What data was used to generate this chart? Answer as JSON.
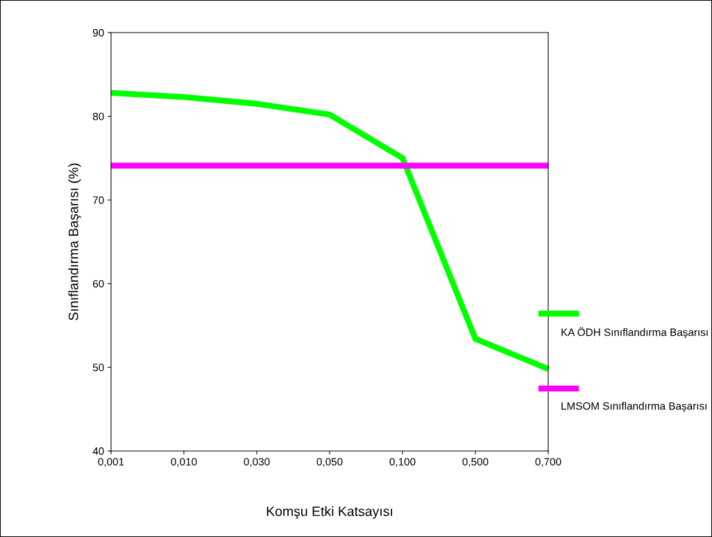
{
  "chart_data": {
    "type": "line",
    "xlabel": "Komşu Etki Katsayısı",
    "ylabel": "Sınıflandırma Başarısı (%)",
    "categories": [
      "0,001",
      "0,010",
      "0,030",
      "0,050",
      "0,100",
      "0,500",
      "0,700"
    ],
    "series": [
      {
        "name": "KA ÖDH Sınıflandırma Başarısı",
        "color": "#00ff00",
        "values": [
          82.8,
          82.3,
          81.5,
          80.2,
          75.0,
          53.4,
          49.8
        ]
      },
      {
        "name": "LMSOM Sınıflandırma Başarısı",
        "color": "#ff00ff",
        "values": [
          74.1,
          74.1,
          74.1,
          74.1,
          74.1,
          74.1,
          74.1
        ]
      }
    ],
    "ylim": [
      40,
      90
    ],
    "yticks": [
      40,
      50,
      60,
      70,
      80,
      90
    ],
    "grid": false,
    "legend": "right",
    "marker": "none",
    "line_style": "solid"
  }
}
